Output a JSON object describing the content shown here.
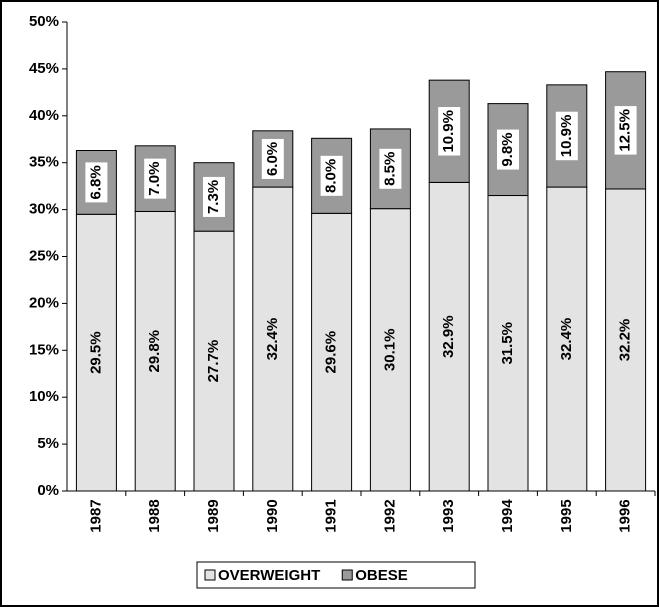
{
  "chart_data": {
    "type": "stacked-bar",
    "categories": [
      "1987",
      "1988",
      "1989",
      "1990",
      "1991",
      "1992",
      "1993",
      "1994",
      "1995",
      "1996"
    ],
    "series": [
      {
        "name": "OVERWEIGHT",
        "color": "#e3e3e3",
        "values": [
          29.5,
          29.8,
          27.7,
          32.4,
          29.6,
          30.1,
          32.9,
          31.5,
          32.4,
          32.2
        ],
        "value_labels": [
          "29.5%",
          "29.8%",
          "27.7%",
          "32.4%",
          "29.6%",
          "30.1%",
          "32.9%",
          "31.5%",
          "32.4%",
          "32.2%"
        ]
      },
      {
        "name": "OBESE",
        "color": "#9a9a9a",
        "values": [
          6.8,
          7.0,
          7.3,
          6.0,
          8.0,
          8.5,
          10.9,
          9.8,
          10.9,
          12.5
        ],
        "value_labels": [
          "6.8%",
          "7.0%",
          "7.3%",
          "6.0%",
          "8.0%",
          "8.5%",
          "10.9%",
          "9.8%",
          "10.9%",
          "12.5%"
        ]
      }
    ],
    "ylim": [
      0,
      50
    ],
    "yticks": [
      {
        "value": 0,
        "label": "0%"
      },
      {
        "value": 5,
        "label": "5%"
      },
      {
        "value": 10,
        "label": "10%"
      },
      {
        "value": 15,
        "label": "15%"
      },
      {
        "value": 20,
        "label": "20%"
      },
      {
        "value": 25,
        "label": "25%"
      },
      {
        "value": 30,
        "label": "30%"
      },
      {
        "value": 35,
        "label": "35%"
      },
      {
        "value": 40,
        "label": "40%"
      },
      {
        "value": 45,
        "label": "45%"
      },
      {
        "value": 50,
        "label": "50%"
      }
    ],
    "legend": "bottom"
  }
}
